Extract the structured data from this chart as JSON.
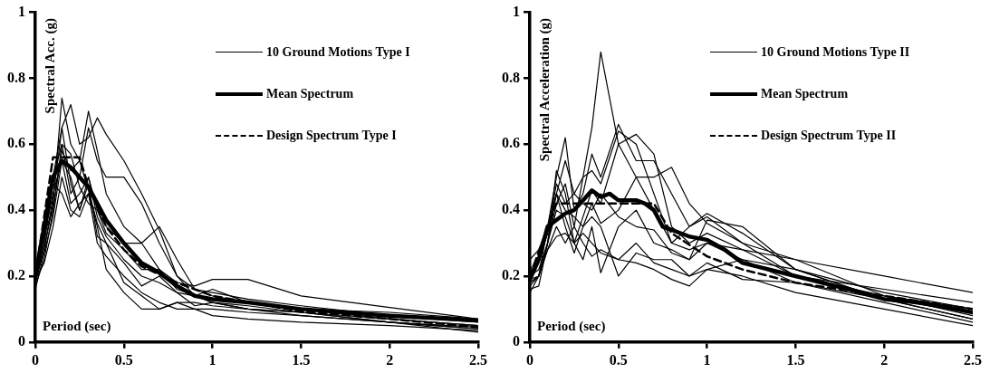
{
  "chart_data": [
    {
      "type": "line",
      "xlabel": "Period (sec)",
      "ylabel": "Spectral Acc. (g)",
      "xlim": [
        0,
        2.5
      ],
      "ylim": [
        0,
        1
      ],
      "xticks": [
        0,
        0.5,
        1,
        1.5,
        2,
        2.5
      ],
      "yticks": [
        0,
        0.2,
        0.4,
        0.6,
        0.8,
        1
      ],
      "grid": false,
      "legend": "top right",
      "marker": "none",
      "x": [
        0,
        0.05,
        0.1,
        0.15,
        0.2,
        0.25,
        0.3,
        0.35,
        0.4,
        0.5,
        0.6,
        0.7,
        0.8,
        0.9,
        1.0,
        1.2,
        1.5,
        2.0,
        2.5
      ],
      "series": [
        {
          "name": "10 Ground Motions Type I",
          "color": "#000000",
          "line_style": "solid",
          "values": [
            0.18,
            0.28,
            0.42,
            0.74,
            0.6,
            0.55,
            0.7,
            0.58,
            0.45,
            0.35,
            0.3,
            0.22,
            0.18,
            0.17,
            0.19,
            0.19,
            0.14,
            0.105,
            0.07
          ]
        },
        {
          "name": "Mean Spectrum",
          "color": "#000000",
          "line_style": "solid",
          "x": [
            0,
            0.05,
            0.1,
            0.15,
            0.2,
            0.25,
            0.3,
            0.35,
            0.4,
            0.5,
            0.6,
            0.7,
            0.8,
            0.9,
            1.0,
            1.2,
            1.5,
            2.0,
            2.5
          ],
          "values": [
            0.2,
            0.35,
            0.5,
            0.55,
            0.53,
            0.5,
            0.47,
            0.42,
            0.37,
            0.3,
            0.24,
            0.21,
            0.17,
            0.14,
            0.13,
            0.12,
            0.1,
            0.08,
            0.065
          ]
        },
        {
          "name": "Design Spectrum Type I",
          "color": "#000000",
          "line_style": "dashed",
          "x": [
            0,
            0.1,
            0.2,
            0.25,
            0.3,
            0.4,
            0.5,
            0.6,
            0.8,
            1.0,
            1.5,
            2.0,
            2.5
          ],
          "values": [
            0.2,
            0.56,
            0.56,
            0.56,
            0.47,
            0.35,
            0.28,
            0.23,
            0.18,
            0.14,
            0.093,
            0.07,
            0.045
          ]
        },
        {
          "color": "#000000",
          "line_style": "solid",
          "values": [
            0.2,
            0.3,
            0.5,
            0.65,
            0.72,
            0.6,
            0.62,
            0.68,
            0.63,
            0.55,
            0.45,
            0.34,
            0.2,
            0.14,
            0.12,
            0.1,
            0.09,
            0.07,
            0.05
          ]
        },
        {
          "color": "#000000",
          "line_style": "solid",
          "values": [
            0.17,
            0.25,
            0.4,
            0.6,
            0.45,
            0.5,
            0.65,
            0.55,
            0.5,
            0.5,
            0.42,
            0.3,
            0.2,
            0.16,
            0.14,
            0.12,
            0.1,
            0.09,
            0.07
          ]
        },
        {
          "color": "#000000",
          "line_style": "solid",
          "values": [
            0.2,
            0.32,
            0.45,
            0.55,
            0.42,
            0.45,
            0.5,
            0.4,
            0.35,
            0.3,
            0.3,
            0.35,
            0.25,
            0.16,
            0.15,
            0.13,
            0.11,
            0.08,
            0.06
          ]
        },
        {
          "color": "#000000",
          "line_style": "solid",
          "values": [
            0.19,
            0.24,
            0.35,
            0.5,
            0.4,
            0.38,
            0.45,
            0.3,
            0.26,
            0.2,
            0.15,
            0.12,
            0.1,
            0.1,
            0.08,
            0.07,
            0.06,
            0.05,
            0.035
          ]
        },
        {
          "color": "#000000",
          "line_style": "solid",
          "values": [
            0.18,
            0.3,
            0.48,
            0.45,
            0.38,
            0.42,
            0.45,
            0.35,
            0.22,
            0.15,
            0.1,
            0.1,
            0.12,
            0.1,
            0.1,
            0.09,
            0.08,
            0.06,
            0.04
          ]
        },
        {
          "color": "#000000",
          "line_style": "solid",
          "values": [
            0.16,
            0.27,
            0.38,
            0.55,
            0.5,
            0.4,
            0.5,
            0.38,
            0.32,
            0.25,
            0.2,
            0.18,
            0.15,
            0.14,
            0.12,
            0.11,
            0.09,
            0.06,
            0.045
          ]
        },
        {
          "color": "#000000",
          "line_style": "solid",
          "values": [
            0.21,
            0.35,
            0.5,
            0.6,
            0.57,
            0.47,
            0.42,
            0.4,
            0.33,
            0.28,
            0.22,
            0.22,
            0.16,
            0.14,
            0.16,
            0.12,
            0.1,
            0.07,
            0.05
          ]
        },
        {
          "color": "#000000",
          "line_style": "solid",
          "values": [
            0.19,
            0.28,
            0.44,
            0.65,
            0.48,
            0.4,
            0.48,
            0.32,
            0.3,
            0.18,
            0.14,
            0.1,
            0.12,
            0.12,
            0.11,
            0.1,
            0.08,
            0.06,
            0.04
          ]
        },
        {
          "color": "#000000",
          "line_style": "solid",
          "values": [
            0.2,
            0.33,
            0.4,
            0.58,
            0.52,
            0.55,
            0.46,
            0.36,
            0.3,
            0.24,
            0.17,
            0.2,
            0.15,
            0.11,
            0.12,
            0.1,
            0.09,
            0.06,
            0.03
          ]
        }
      ]
    },
    {
      "type": "line",
      "xlabel": "Period (sec)",
      "ylabel": "Spectral Acceleration (g)",
      "xlim": [
        0,
        2.5
      ],
      "ylim": [
        0,
        1
      ],
      "xticks": [
        0,
        0.5,
        1,
        1.5,
        2,
        2.5
      ],
      "yticks": [
        0,
        0.2,
        0.4,
        0.6,
        0.8,
        1
      ],
      "grid": false,
      "legend": "top right",
      "marker": "none",
      "x": [
        0,
        0.05,
        0.1,
        0.15,
        0.2,
        0.25,
        0.3,
        0.35,
        0.4,
        0.5,
        0.6,
        0.7,
        0.8,
        0.9,
        1.0,
        1.2,
        1.5,
        2.0,
        2.5
      ],
      "series": [
        {
          "name": "10 Ground Motions Type II",
          "color": "#000000",
          "line_style": "solid",
          "values": [
            0.18,
            0.2,
            0.3,
            0.45,
            0.55,
            0.45,
            0.5,
            0.65,
            0.88,
            0.6,
            0.5,
            0.4,
            0.3,
            0.28,
            0.3,
            0.25,
            0.22,
            0.13,
            0.09
          ]
        },
        {
          "name": "Mean Spectrum",
          "color": "#000000",
          "line_style": "solid",
          "x": [
            0,
            0.05,
            0.1,
            0.15,
            0.2,
            0.25,
            0.3,
            0.35,
            0.4,
            0.45,
            0.5,
            0.6,
            0.65,
            0.7,
            0.75,
            0.8,
            0.9,
            1.0,
            1.1,
            1.2,
            1.5,
            1.8,
            2.0,
            2.2,
            2.5
          ],
          "values": [
            0.19,
            0.25,
            0.35,
            0.37,
            0.39,
            0.4,
            0.43,
            0.46,
            0.44,
            0.45,
            0.43,
            0.43,
            0.42,
            0.4,
            0.35,
            0.34,
            0.32,
            0.31,
            0.28,
            0.24,
            0.2,
            0.16,
            0.13,
            0.12,
            0.09
          ]
        },
        {
          "name": "Design Spectrum Type II",
          "color": "#000000",
          "line_style": "dashed",
          "x": [
            0,
            0.15,
            0.4,
            0.7,
            0.8,
            1.0,
            1.2,
            1.5,
            2.0,
            2.5
          ],
          "values": [
            0.2,
            0.42,
            0.42,
            0.42,
            0.33,
            0.26,
            0.22,
            0.18,
            0.14,
            0.1
          ]
        },
        {
          "color": "#000000",
          "line_style": "solid",
          "values": [
            0.15,
            0.2,
            0.35,
            0.5,
            0.62,
            0.4,
            0.45,
            0.57,
            0.5,
            0.66,
            0.55,
            0.55,
            0.45,
            0.35,
            0.38,
            0.3,
            0.2,
            0.16,
            0.12
          ]
        },
        {
          "color": "#000000",
          "line_style": "solid",
          "values": [
            0.16,
            0.17,
            0.3,
            0.42,
            0.48,
            0.35,
            0.5,
            0.52,
            0.48,
            0.64,
            0.6,
            0.45,
            0.3,
            0.35,
            0.39,
            0.33,
            0.22,
            0.15,
            0.1
          ]
        },
        {
          "color": "#000000",
          "line_style": "solid",
          "values": [
            0.2,
            0.22,
            0.3,
            0.52,
            0.45,
            0.3,
            0.38,
            0.46,
            0.42,
            0.6,
            0.63,
            0.57,
            0.35,
            0.3,
            0.33,
            0.28,
            0.2,
            0.14,
            0.08
          ]
        },
        {
          "color": "#000000",
          "line_style": "solid",
          "values": [
            0.22,
            0.25,
            0.33,
            0.45,
            0.35,
            0.27,
            0.35,
            0.42,
            0.36,
            0.4,
            0.5,
            0.5,
            0.53,
            0.42,
            0.36,
            0.3,
            0.25,
            0.2,
            0.15
          ]
        },
        {
          "color": "#000000",
          "line_style": "solid",
          "values": [
            0.19,
            0.2,
            0.3,
            0.4,
            0.38,
            0.3,
            0.25,
            0.35,
            0.21,
            0.35,
            0.4,
            0.3,
            0.28,
            0.25,
            0.37,
            0.35,
            0.22,
            0.13,
            0.07
          ]
        },
        {
          "color": "#000000",
          "line_style": "solid",
          "values": [
            0.17,
            0.2,
            0.28,
            0.35,
            0.3,
            0.35,
            0.3,
            0.26,
            0.28,
            0.25,
            0.3,
            0.24,
            0.22,
            0.2,
            0.24,
            0.19,
            0.18,
            0.12,
            0.06
          ]
        },
        {
          "color": "#000000",
          "line_style": "solid",
          "values": [
            0.25,
            0.28,
            0.35,
            0.45,
            0.4,
            0.38,
            0.35,
            0.38,
            0.35,
            0.2,
            0.27,
            0.25,
            0.25,
            0.2,
            0.22,
            0.25,
            0.18,
            0.13,
            0.07
          ]
        },
        {
          "color": "#000000",
          "line_style": "solid",
          "values": [
            0.2,
            0.25,
            0.33,
            0.48,
            0.42,
            0.45,
            0.42,
            0.4,
            0.45,
            0.38,
            0.35,
            0.34,
            0.27,
            0.25,
            0.3,
            0.28,
            0.25,
            0.14,
            0.1
          ]
        },
        {
          "color": "#000000",
          "line_style": "solid",
          "values": [
            0.18,
            0.2,
            0.28,
            0.32,
            0.33,
            0.3,
            0.33,
            0.3,
            0.27,
            0.25,
            0.24,
            0.22,
            0.19,
            0.17,
            0.22,
            0.2,
            0.15,
            0.1,
            0.05
          ]
        }
      ]
    }
  ]
}
